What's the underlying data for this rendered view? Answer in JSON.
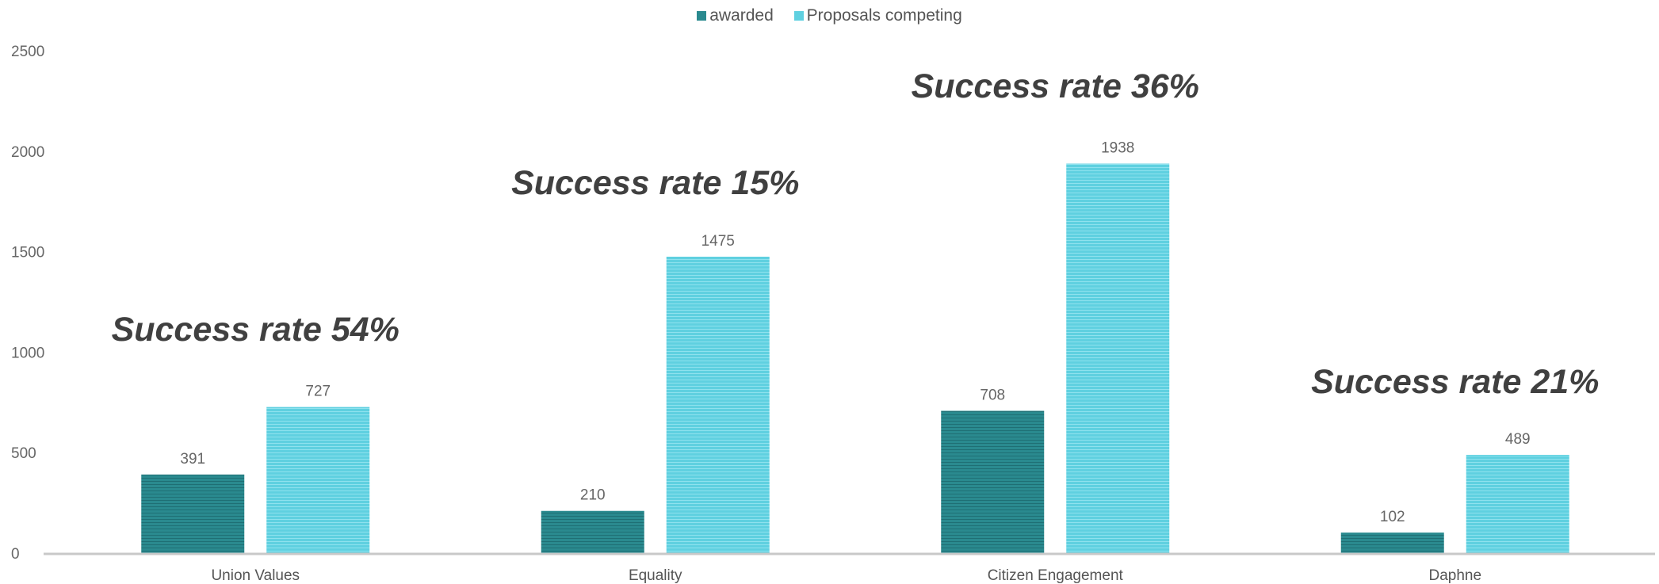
{
  "chart_data": {
    "type": "bar",
    "categories": [
      "Union Values",
      "Equality",
      "Citizen Engagement",
      "Daphne"
    ],
    "series": [
      {
        "name": "awarded",
        "values": [
          391,
          210,
          708,
          102
        ],
        "color": "#2a8a8f"
      },
      {
        "name": "Proposals competing",
        "values": [
          727,
          1475,
          1938,
          489
        ],
        "color": "#5fd0e0"
      }
    ],
    "ylim": [
      0,
      2500
    ],
    "yticks": [
      0,
      500,
      1000,
      1500,
      2000,
      2500
    ],
    "annotations": [
      "Success rate 54%",
      "Success rate 15%",
      "Success rate 36%",
      "Success rate 21%"
    ],
    "legend_position": "top",
    "grid": false,
    "title": "",
    "xlabel": "",
    "ylabel": ""
  }
}
